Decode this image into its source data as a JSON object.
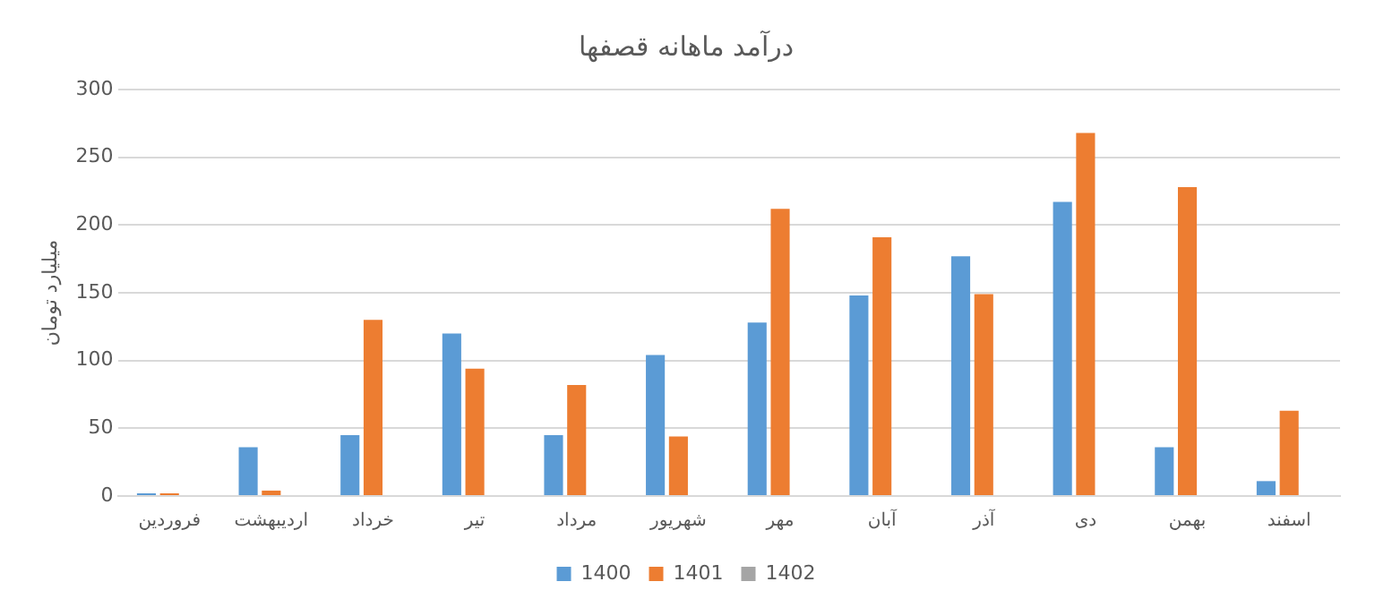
{
  "chart_data": {
    "type": "bar",
    "title": "درآمد ماهانه قصفها",
    "ylabel": "میلیارد تومان",
    "categories": [
      "فروردین",
      "اردیبهشت",
      "خرداد",
      "تیر",
      "مرداد",
      "شهریور",
      "مهر",
      "آبان",
      "آذر",
      "دی",
      "بهمن",
      "اسفند"
    ],
    "series": [
      {
        "name": "1400",
        "color": "#5b9bd5",
        "values": [
          2,
          36,
          45,
          120,
          45,
          104,
          128,
          148,
          177,
          217,
          36,
          11
        ]
      },
      {
        "name": "1401",
        "color": "#ed7d31",
        "values": [
          2,
          4,
          130,
          94,
          82,
          44,
          212,
          191,
          149,
          268,
          228,
          63
        ]
      },
      {
        "name": "1402",
        "color": "#a5a5a5",
        "values": [
          null,
          null,
          null,
          null,
          null,
          null,
          null,
          null,
          null,
          null,
          null,
          null
        ]
      }
    ],
    "ylim": [
      0,
      300
    ],
    "yticks": [
      0,
      50,
      100,
      150,
      200,
      250,
      300
    ],
    "grid": "y",
    "legend": "bottom"
  }
}
